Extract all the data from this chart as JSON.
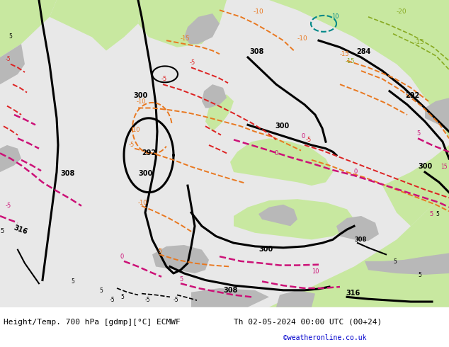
{
  "title_left": "Height/Temp. 700 hPa [gdmp][°C] ECMWF",
  "title_right": "Th 02-05-2024 00:00 UTC (00+24)",
  "credit": "©weatheronline.co.uk",
  "sea_color": "#e8e8e8",
  "land_green": "#c8e8a0",
  "land_gray": "#b8b8b8",
  "black_line": "#000000",
  "orange": "#e87820",
  "pink": "#cc1177",
  "red": "#dd2222",
  "green_label": "#88aa22",
  "teal": "#008888"
}
